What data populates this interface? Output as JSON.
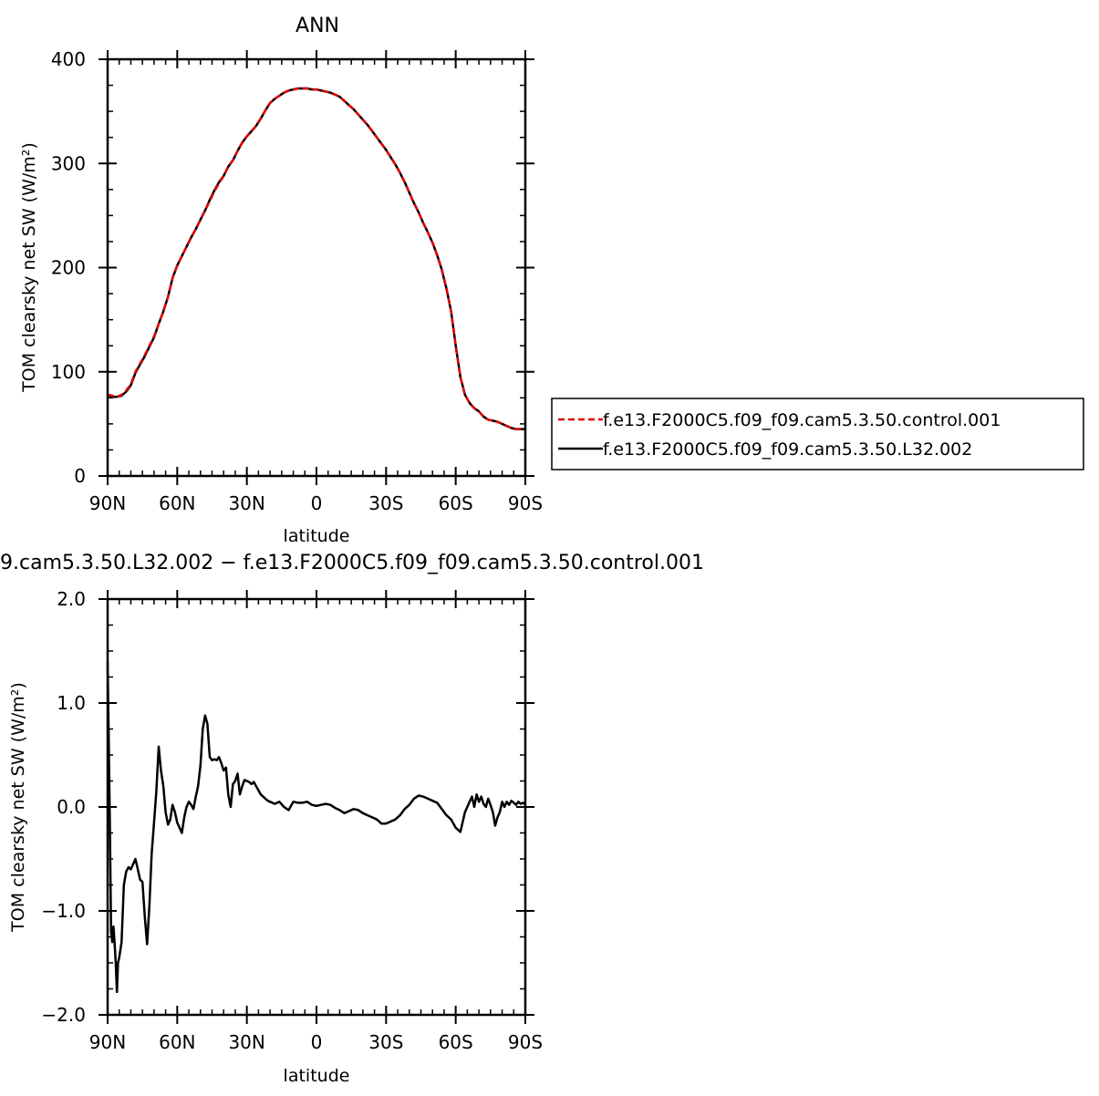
{
  "chart_data": [
    {
      "type": "line",
      "title": "ANN",
      "xlabel": "latitude",
      "ylabel": "TOM clearsky net SW (W/m²)",
      "xlim": [
        90,
        -90
      ],
      "ylim": [
        0,
        400
      ],
      "x_ticks": [
        {
          "value": 90,
          "label": "90N"
        },
        {
          "value": 60,
          "label": "60N"
        },
        {
          "value": 30,
          "label": "30N"
        },
        {
          "value": 0,
          "label": "0"
        },
        {
          "value": -30,
          "label": "30S"
        },
        {
          "value": -60,
          "label": "60S"
        },
        {
          "value": -90,
          "label": "90S"
        }
      ],
      "y_ticks": [
        {
          "value": 0,
          "label": "0"
        },
        {
          "value": 100,
          "label": "100"
        },
        {
          "value": 200,
          "label": "200"
        },
        {
          "value": 300,
          "label": "300"
        },
        {
          "value": 400,
          "label": "400"
        }
      ],
      "legend_position": "right",
      "series": [
        {
          "name": "f.e13.F2000C5.f09_f09.cam5.3.50.control.001",
          "color": "#e00000",
          "dash": "dashed",
          "x": [
            90,
            88,
            86,
            84,
            82,
            80,
            78,
            76,
            74,
            72,
            70,
            68,
            66,
            64,
            62,
            60,
            58,
            56,
            54,
            52,
            50,
            48,
            46,
            44,
            42,
            40,
            38,
            36,
            34,
            32,
            30,
            28,
            26,
            24,
            22,
            20,
            18,
            16,
            14,
            12,
            10,
            8,
            6,
            4,
            2,
            0,
            -2,
            -4,
            -6,
            -8,
            -10,
            -12,
            -14,
            -16,
            -18,
            -20,
            -22,
            -24,
            -26,
            -28,
            -30,
            -32,
            -34,
            -36,
            -38,
            -40,
            -42,
            -44,
            -46,
            -48,
            -50,
            -52,
            -54,
            -56,
            -58,
            -60,
            -62,
            -64,
            -66,
            -68,
            -70,
            -72,
            -74,
            -76,
            -78,
            -80,
            -82,
            -84,
            -86,
            -88,
            -90
          ],
          "y": [
            78,
            77,
            76,
            78,
            82,
            88,
            100,
            108,
            116,
            125,
            134,
            146,
            158,
            172,
            190,
            202,
            211,
            220,
            229,
            237,
            246,
            255,
            264,
            273,
            281,
            288,
            297,
            303,
            312,
            320,
            326,
            331,
            336,
            343,
            351,
            358,
            362,
            365,
            368,
            370,
            371,
            372,
            372,
            372,
            371,
            371,
            370,
            369,
            368,
            366,
            364,
            360,
            356,
            352,
            347,
            342,
            337,
            331,
            325,
            319,
            313,
            306,
            299,
            291,
            282,
            272,
            262,
            253,
            243,
            234,
            224,
            212,
            198,
            180,
            158,
            125,
            95,
            78,
            70,
            65,
            62,
            57,
            54,
            53,
            52,
            50,
            48,
            46,
            45,
            45,
            45
          ]
        },
        {
          "name": "f.e13.F2000C5.f09_f09.cam5.3.50.L32.002",
          "color": "#000000",
          "dash": "solid",
          "x": [
            90,
            88,
            86,
            84,
            82,
            80,
            78,
            76,
            74,
            72,
            70,
            68,
            66,
            64,
            62,
            60,
            58,
            56,
            54,
            52,
            50,
            48,
            46,
            44,
            42,
            40,
            38,
            36,
            34,
            32,
            30,
            28,
            26,
            24,
            22,
            20,
            18,
            16,
            14,
            12,
            10,
            8,
            6,
            4,
            2,
            0,
            -2,
            -4,
            -6,
            -8,
            -10,
            -12,
            -14,
            -16,
            -18,
            -20,
            -22,
            -24,
            -26,
            -28,
            -30,
            -32,
            -34,
            -36,
            -38,
            -40,
            -42,
            -44,
            -46,
            -48,
            -50,
            -52,
            -54,
            -56,
            -58,
            -60,
            -62,
            -64,
            -66,
            -68,
            -70,
            -72,
            -74,
            -76,
            -78,
            -80,
            -82,
            -84,
            -86,
            -88,
            -90
          ],
          "y": [
            78,
            76,
            76,
            77,
            81,
            87,
            99,
            107,
            115,
            124,
            133,
            146,
            158,
            172,
            190,
            202,
            211,
            220,
            229,
            237,
            246,
            255,
            265,
            274,
            282,
            288,
            297,
            303,
            312,
            320,
            326,
            331,
            336,
            343,
            351,
            358,
            362,
            365,
            368,
            370,
            371,
            372,
            372,
            372,
            371,
            371,
            370,
            369,
            368,
            366,
            364,
            360,
            356,
            352,
            347,
            342,
            337,
            331,
            325,
            319,
            313,
            306,
            299,
            291,
            282,
            272,
            262,
            253,
            243,
            234,
            224,
            212,
            198,
            180,
            158,
            125,
            95,
            78,
            70,
            65,
            62,
            57,
            54,
            53,
            52,
            50,
            48,
            46,
            45,
            45,
            45
          ]
        }
      ]
    },
    {
      "type": "line",
      "title": "9.cam5.3.50.L32.002 − f.e13.F2000C5.f09_f09.cam5.3.50.control.001",
      "xlabel": "latitude",
      "ylabel": "TOM clearsky net SW (W/m²)",
      "xlim": [
        90,
        -90
      ],
      "ylim": [
        -2,
        2
      ],
      "x_ticks": [
        {
          "value": 90,
          "label": "90N"
        },
        {
          "value": 60,
          "label": "60N"
        },
        {
          "value": 30,
          "label": "30N"
        },
        {
          "value": 0,
          "label": "0"
        },
        {
          "value": -30,
          "label": "30S"
        },
        {
          "value": -60,
          "label": "60S"
        },
        {
          "value": -90,
          "label": "90S"
        }
      ],
      "y_ticks": [
        {
          "value": -2,
          "label": "−2.0"
        },
        {
          "value": -1,
          "label": "−1.0"
        },
        {
          "value": 0,
          "label": "0.0"
        },
        {
          "value": 1,
          "label": "1.0"
        },
        {
          "value": 2,
          "label": "2.0"
        }
      ],
      "series": [
        {
          "color": "#000000",
          "dash": "solid",
          "x": [
            90,
            89.5,
            89,
            88.5,
            88,
            87.5,
            87,
            86.5,
            86,
            85.5,
            85,
            84,
            83,
            82,
            81,
            80,
            79,
            78,
            77,
            76,
            75,
            74,
            73,
            72,
            71,
            70,
            69,
            68,
            67,
            66,
            65,
            64,
            63,
            62,
            61,
            60,
            59,
            58,
            57,
            56,
            55,
            54,
            53,
            52,
            51,
            50,
            49,
            48,
            47,
            46,
            45,
            44,
            43,
            42,
            41,
            40,
            39,
            38,
            37,
            36,
            35,
            34,
            33,
            32,
            31,
            30,
            29,
            28,
            27,
            26,
            25,
            24,
            23,
            22,
            21,
            20,
            18,
            16,
            14,
            12,
            10,
            8,
            6,
            4,
            2,
            0,
            -2,
            -4,
            -6,
            -8,
            -10,
            -12,
            -14,
            -16,
            -18,
            -20,
            -22,
            -24,
            -26,
            -28,
            -30,
            -32,
            -34,
            -36,
            -38,
            -40,
            -42,
            -44,
            -46,
            -48,
            -50,
            -52,
            -54,
            -56,
            -58,
            -60,
            -62,
            -64,
            -66,
            -67,
            -68,
            -69,
            -70,
            -71,
            -72,
            -73,
            -74,
            -75,
            -76,
            -77,
            -78,
            -79,
            -80,
            -81,
            -82,
            -83,
            -84,
            -85,
            -86,
            -87,
            -88,
            -89,
            -90
          ],
          "y": [
            1.4,
            0.6,
            -0.2,
            -1.2,
            -1.3,
            -1.15,
            -1.3,
            -1.5,
            -1.78,
            -1.5,
            -1.45,
            -1.3,
            -0.75,
            -0.62,
            -0.58,
            -0.6,
            -0.55,
            -0.5,
            -0.6,
            -0.7,
            -0.72,
            -1.05,
            -1.32,
            -0.95,
            -0.45,
            -0.15,
            0.15,
            0.58,
            0.35,
            0.2,
            -0.05,
            -0.17,
            -0.12,
            0.02,
            -0.05,
            -0.15,
            -0.2,
            -0.25,
            -0.1,
            0.0,
            0.05,
            0.02,
            -0.02,
            0.1,
            0.2,
            0.4,
            0.75,
            0.88,
            0.8,
            0.48,
            0.45,
            0.46,
            0.45,
            0.48,
            0.42,
            0.35,
            0.38,
            0.12,
            0.0,
            0.22,
            0.25,
            0.32,
            0.12,
            0.2,
            0.26,
            0.25,
            0.24,
            0.22,
            0.24,
            0.2,
            0.16,
            0.12,
            0.1,
            0.08,
            0.06,
            0.05,
            0.03,
            0.05,
            0.0,
            -0.03,
            0.05,
            0.04,
            0.04,
            0.05,
            0.02,
            0.01,
            0.02,
            0.03,
            0.02,
            -0.01,
            -0.03,
            -0.06,
            -0.04,
            -0.02,
            -0.03,
            -0.06,
            -0.08,
            -0.1,
            -0.12,
            -0.16,
            -0.16,
            -0.14,
            -0.12,
            -0.08,
            -0.02,
            0.02,
            0.08,
            0.11,
            0.1,
            0.08,
            0.06,
            0.04,
            -0.02,
            -0.08,
            -0.12,
            -0.2,
            -0.24,
            -0.05,
            0.05,
            0.1,
            0.0,
            0.12,
            0.05,
            0.1,
            0.03,
            0.0,
            0.08,
            0.02,
            -0.05,
            -0.18,
            -0.1,
            -0.05,
            0.05,
            0.0,
            0.05,
            0.02,
            0.06,
            0.04,
            0.02,
            0.05,
            0.03,
            0.04,
            0.02
          ]
        }
      ]
    }
  ]
}
